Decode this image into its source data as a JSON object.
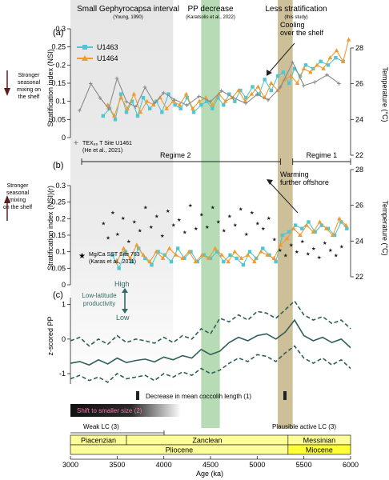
{
  "header": {
    "small_gephyrocapsa": "Small Gephyrocapsa interval",
    "small_gephyrocapsa_ref": "(Young, 1990)",
    "pp_decrease": "PP decrease",
    "pp_decrease_ref": "(Karatsolis et al., 2022)",
    "less_strat": "Less stratification",
    "less_strat_ref": "(this study)"
  },
  "left_notes": {
    "top_mixing": "Stronger seasonal mixing on the shelf",
    "mid_mixing": "Stronger seasonal mixing on the shelf"
  },
  "x_axis": {
    "label": "Age (ka)",
    "ticks": [
      "3000",
      "3500",
      "4000",
      "4500",
      "5000",
      "5500",
      "6000"
    ],
    "range": [
      3000,
      6000
    ]
  },
  "shading": {
    "gray_small_gephyrocapsa": [
      3000,
      4100
    ],
    "green_pp_decrease": [
      4400,
      4600
    ],
    "tan_less_stratification": [
      5220,
      5380
    ]
  },
  "regimes": {
    "regime2_label": "Regime 2",
    "regime2_range": [
      3000,
      5250
    ],
    "regime1_label": "Regime 1",
    "regime1_range": [
      5380,
      6000
    ]
  },
  "annotations": {
    "cooling": "Cooling over the shelf",
    "warming": "Warming further offshore",
    "low_lat_prod": "Low-latitude productivity",
    "high": "High",
    "low": "Low",
    "decrease_coccolith": "Decrease in mean coccolih length (1)",
    "shift_smaller": "Shift to smaller size (2)",
    "weak_lc": "Weak LC (3)",
    "plausible_lc": "Plausible active LC (3)"
  },
  "chart_data": [
    {
      "panel": "(a)",
      "type": "line",
      "ylabel": "Stratification index (NSI)",
      "y2label": "Temperature (°C)",
      "ylim": [
        0,
        0.3
      ],
      "y2lim": [
        22,
        28
      ],
      "yticks": [
        "0",
        "0.05",
        "0.1",
        "0.15",
        "0.2",
        "0.25",
        "0.3"
      ],
      "y2ticks": [
        "22",
        "24",
        "26",
        "28"
      ],
      "legend": [
        "U1463",
        "U1464"
      ],
      "secondary_legend": "TEX86 T Site U1461 (He et al., 2021)",
      "series": [
        {
          "name": "U1463",
          "color": "#4fc6d1",
          "marker": "square",
          "x": [
            3350,
            3420,
            3480,
            3540,
            3600,
            3660,
            3720,
            3780,
            3850,
            3920,
            3980,
            4050,
            4120,
            4180,
            4250,
            4320,
            4400,
            4460,
            4520,
            4580,
            4640,
            4700,
            4760,
            4820,
            4880,
            4950,
            5020,
            5080,
            5150,
            5220,
            5280,
            5340,
            5400,
            5460,
            5520,
            5600,
            5680,
            5760,
            5840,
            5920
          ],
          "y": [
            0.06,
            0.08,
            0.05,
            0.12,
            0.07,
            0.1,
            0.06,
            0.11,
            0.08,
            0.1,
            0.07,
            0.12,
            0.09,
            0.08,
            0.11,
            0.07,
            0.09,
            0.1,
            0.08,
            0.11,
            0.09,
            0.12,
            0.1,
            0.13,
            0.11,
            0.14,
            0.12,
            0.16,
            0.13,
            0.17,
            0.18,
            0.15,
            0.19,
            0.17,
            0.2,
            0.19,
            0.21,
            0.2,
            0.22,
            0.21
          ]
        },
        {
          "name": "U1464",
          "color": "#f39a2e",
          "marker": "triangle",
          "x": [
            3400,
            3470,
            3540,
            3610,
            3680,
            3750,
            3820,
            3890,
            3960,
            4030,
            4100,
            4170,
            4240,
            4310,
            4380,
            4450,
            4520,
            4590,
            4660,
            4730,
            4800,
            4870,
            4940,
            5010,
            5080,
            5150,
            5220,
            5290,
            5360,
            5430,
            5500,
            5570,
            5640,
            5710,
            5780,
            5850,
            5920,
            5980
          ],
          "y": [
            0.09,
            0.06,
            0.11,
            0.08,
            0.12,
            0.07,
            0.1,
            0.09,
            0.11,
            0.08,
            0.1,
            0.09,
            0.12,
            0.08,
            0.1,
            0.11,
            0.09,
            0.12,
            0.1,
            0.11,
            0.13,
            0.1,
            0.12,
            0.14,
            0.11,
            0.15,
            0.13,
            0.16,
            0.17,
            0.15,
            0.19,
            0.18,
            0.2,
            0.19,
            0.22,
            0.24,
            0.21,
            0.27
          ]
        },
        {
          "name": "TEX86 T Site U1461",
          "color": "#8a8a8a",
          "marker": "plus",
          "x": [
            3100,
            3220,
            3320,
            3410,
            3500,
            3600,
            3700,
            3800,
            3900,
            4000,
            4120,
            4250,
            4380,
            4500,
            4620,
            4750,
            4880,
            5000,
            5120,
            5250,
            5380,
            5500,
            5620,
            5750,
            5880
          ],
          "y": [
            24.5,
            26.0,
            25.2,
            24.6,
            26.3,
            25.0,
            24.7,
            25.8,
            24.9,
            25.5,
            25.1,
            24.8,
            25.3,
            25.0,
            25.6,
            25.2,
            24.9,
            25.4,
            25.1,
            25.8,
            27.2,
            25.9,
            26.1,
            26.5,
            26.0
          ]
        }
      ]
    },
    {
      "panel": "(b)",
      "type": "line",
      "ylabel": "Stratification index (NSI)(r)",
      "y2label": "Temperature (°C)",
      "ylim": [
        0.3,
        0
      ],
      "y2lim": [
        22,
        28
      ],
      "yticks": [
        "0",
        "0.05",
        "0.1",
        "0.15",
        "0.2",
        "0.25",
        "0.3"
      ],
      "y2ticks": [
        "22",
        "24",
        "26",
        "28"
      ],
      "secondary_legend": "Mg/Ca SST Site 763 (Karas et al., 2011)",
      "series": [
        {
          "name": "U1463",
          "color": "#4fc6d1",
          "marker": "square",
          "x": [
            3450,
            3520,
            3590,
            3660,
            3730,
            3800,
            3870,
            3940,
            4010,
            4080,
            4150,
            4220,
            4290,
            4360,
            4430,
            4500,
            4570,
            4640,
            4710,
            4780,
            4850,
            4920,
            4990,
            5060,
            5130,
            5200,
            5270,
            5340,
            5410,
            5480,
            5550,
            5620,
            5690,
            5760,
            5830,
            5900,
            5960
          ],
          "y": [
            0.09,
            0.05,
            0.1,
            0.07,
            0.11,
            0.08,
            0.06,
            0.1,
            0.09,
            0.07,
            0.11,
            0.08,
            0.1,
            0.07,
            0.09,
            0.08,
            0.1,
            0.07,
            0.09,
            0.08,
            0.06,
            0.1,
            0.08,
            0.11,
            0.09,
            0.07,
            0.15,
            0.16,
            0.18,
            0.17,
            0.19,
            0.16,
            0.18,
            0.17,
            0.15,
            0.19,
            0.17
          ]
        },
        {
          "name": "U1464",
          "color": "#f39a2e",
          "marker": "triangle",
          "x": [
            3500,
            3570,
            3640,
            3710,
            3780,
            3850,
            3920,
            3990,
            4060,
            4130,
            4200,
            4270,
            4340,
            4410,
            4480,
            4550,
            4620,
            4690,
            4760,
            4830,
            4900,
            4970,
            5040,
            5110,
            5180,
            5250,
            5320,
            5390,
            5460,
            5530,
            5600,
            5670,
            5740,
            5810,
            5880,
            5950
          ],
          "y": [
            0.07,
            0.11,
            0.08,
            0.12,
            0.09,
            0.07,
            0.1,
            0.08,
            0.11,
            0.09,
            0.08,
            0.1,
            0.07,
            0.09,
            0.08,
            0.11,
            0.09,
            0.07,
            0.1,
            0.08,
            0.09,
            0.07,
            0.1,
            0.09,
            0.08,
            0.12,
            0.14,
            0.17,
            0.15,
            0.18,
            0.16,
            0.19,
            0.17,
            0.15,
            0.2,
            0.18
          ]
        },
        {
          "name": "Mg/Ca SST Site 763",
          "color": "#1a1a1a",
          "marker": "star",
          "x": [
            3350,
            3400,
            3450,
            3500,
            3560,
            3620,
            3680,
            3740,
            3800,
            3860,
            3920,
            3980,
            4040,
            4100,
            4160,
            4220,
            4280,
            4340,
            4400,
            4460,
            4520,
            4580,
            4640,
            4700,
            4760,
            4820,
            4880,
            4940,
            5000,
            5060,
            5120,
            5180,
            5240,
            5300,
            5360,
            5420,
            5480,
            5540,
            5600,
            5660,
            5720,
            5780,
            5840,
            5900
          ],
          "y": [
            25.0,
            24.2,
            25.6,
            24.4,
            25.3,
            24.0,
            25.1,
            24.6,
            25.9,
            24.8,
            25.4,
            24.3,
            25.7,
            24.9,
            25.2,
            24.5,
            26.0,
            24.7,
            25.5,
            24.8,
            25.9,
            25.1,
            24.6,
            25.4,
            24.9,
            25.8,
            24.4,
            25.6,
            25.0,
            24.7,
            25.3,
            24.1,
            23.5,
            23.2,
            23.8,
            23.4,
            24.0,
            23.3,
            23.6,
            23.1,
            23.9,
            23.5,
            23.2,
            23.7
          ]
        }
      ]
    },
    {
      "panel": "(c)",
      "type": "line",
      "ylabel": "z-scored PP",
      "ylim": [
        -1.3,
        1.2
      ],
      "yticks": [
        "-1",
        "0",
        "1"
      ],
      "series": [
        {
          "name": "z-scored PP",
          "color": "#2f5f5a",
          "dash": "solid",
          "x": [
            3000,
            3100,
            3200,
            3300,
            3400,
            3500,
            3600,
            3700,
            3800,
            3900,
            4000,
            4100,
            4200,
            4300,
            4400,
            4500,
            4600,
            4700,
            4800,
            4900,
            5000,
            5100,
            5200,
            5300,
            5400,
            5500,
            5600,
            5700,
            5800,
            5900,
            6000
          ],
          "y": [
            -0.7,
            -0.65,
            -0.75,
            -0.6,
            -0.72,
            -0.55,
            -0.68,
            -0.62,
            -0.58,
            -0.66,
            -0.52,
            -0.6,
            -0.48,
            -0.55,
            -0.3,
            -0.45,
            -0.35,
            -0.1,
            0.05,
            -0.05,
            0.1,
            0.15,
            0.0,
            0.2,
            0.55,
            0.1,
            -0.05,
            0.05,
            -0.1,
            0.0,
            -0.25
          ]
        },
        {
          "name": "upper bound",
          "color": "#2f5f5a",
          "dash": "dashed",
          "x": [
            3000,
            3100,
            3200,
            3300,
            3400,
            3500,
            3600,
            3700,
            3800,
            3900,
            4000,
            4100,
            4200,
            4300,
            4400,
            4500,
            4600,
            4700,
            4800,
            4900,
            5000,
            5100,
            5200,
            5300,
            5400,
            5500,
            5600,
            5700,
            5800,
            5900,
            6000
          ],
          "y": [
            -0.05,
            0.05,
            -0.2,
            0.0,
            -0.15,
            0.1,
            -0.1,
            0.0,
            -0.05,
            -0.12,
            0.05,
            -0.1,
            0.1,
            0.0,
            0.3,
            0.15,
            0.6,
            0.5,
            0.7,
            0.55,
            0.8,
            0.75,
            0.6,
            0.85,
            1.1,
            0.7,
            0.55,
            0.65,
            0.45,
            0.55,
            0.3
          ]
        },
        {
          "name": "lower bound",
          "color": "#2f5f5a",
          "dash": "dashed",
          "x": [
            3000,
            3100,
            3200,
            3300,
            3400,
            3500,
            3600,
            3700,
            3800,
            3900,
            4000,
            4100,
            4200,
            4300,
            4400,
            4500,
            4600,
            4700,
            4800,
            4900,
            5000,
            5100,
            5200,
            5300,
            5400,
            5500,
            5600,
            5700,
            5800,
            5900,
            6000
          ],
          "y": [
            -1.15,
            -1.05,
            -1.2,
            -1.1,
            -1.25,
            -1.0,
            -1.15,
            -1.1,
            -1.05,
            -1.2,
            -1.0,
            -1.1,
            -0.95,
            -1.05,
            -0.85,
            -1.0,
            -0.9,
            -0.7,
            -0.55,
            -0.65,
            -0.45,
            -0.5,
            -0.65,
            -0.4,
            -0.2,
            -0.55,
            -0.7,
            -0.55,
            -0.75,
            -0.6,
            -0.85
          ]
        }
      ]
    }
  ],
  "stratigraphy": {
    "stages": [
      {
        "label": "Piacenzian",
        "from": 3000,
        "to": 3600
      },
      {
        "label": "Zanclean",
        "from": 3600,
        "to": 5330
      },
      {
        "label": "Messinian",
        "from": 5330,
        "to": 6000
      }
    ],
    "epochs": [
      {
        "label": "Pliocene",
        "from": 3000,
        "to": 5330
      },
      {
        "label": "Miocene",
        "from": 5330,
        "to": 6000
      }
    ],
    "fill": "#ffff99",
    "miocene_fill": "#ffff33"
  },
  "colors": {
    "teal_arrow": "#2f6b63",
    "brown_arrow": "#5b1f1f",
    "gray_band": "#e3e3e3",
    "green_band": "#b7dcb5",
    "tan_band": "#cdbf98"
  }
}
